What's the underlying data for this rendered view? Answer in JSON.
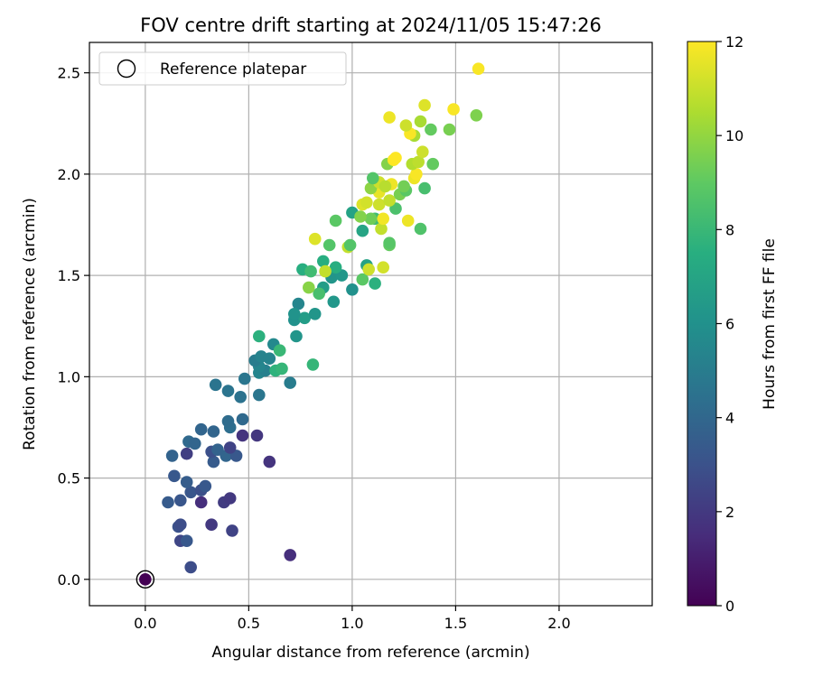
{
  "chart_data": {
    "type": "scatter",
    "title": "FOV centre drift starting at 2024/11/05 15:47:26",
    "xlabel": "Angular distance from reference (arcmin)",
    "ylabel": "Rotation from reference (arcmin)",
    "xlim": [
      -0.27,
      2.45
    ],
    "ylim": [
      -0.13,
      2.65
    ],
    "xticks": [
      0.0,
      0.5,
      1.0,
      1.5,
      2.0
    ],
    "yticks": [
      0.0,
      0.5,
      1.0,
      1.5,
      2.0,
      2.5
    ],
    "grid": true,
    "legend": {
      "location": "upper-left",
      "entries": [
        "Reference platepar"
      ]
    },
    "colorbar": {
      "label": "Hours from first FF file",
      "range": [
        0,
        12
      ],
      "ticks": [
        0,
        2,
        4,
        6,
        8,
        10,
        12
      ],
      "colormap": "viridis"
    },
    "reference_point": {
      "x": 0.0,
      "y": 0.0,
      "color_value": 0
    },
    "points": [
      [
        0.7,
        0.12,
        1.6
      ],
      [
        0.22,
        0.06,
        2.8
      ],
      [
        0.17,
        0.19,
        2.5
      ],
      [
        0.2,
        0.19,
        3.3
      ],
      [
        0.16,
        0.26,
        3.0
      ],
      [
        0.17,
        0.27,
        2.8
      ],
      [
        0.42,
        0.24,
        2.4
      ],
      [
        0.32,
        0.27,
        2.0
      ],
      [
        0.27,
        0.38,
        1.6
      ],
      [
        0.38,
        0.38,
        2.1
      ],
      [
        0.11,
        0.38,
        3.4
      ],
      [
        0.17,
        0.39,
        3.2
      ],
      [
        0.41,
        0.4,
        2.0
      ],
      [
        0.22,
        0.43,
        3.2
      ],
      [
        0.27,
        0.44,
        2.9
      ],
      [
        0.29,
        0.46,
        3.3
      ],
      [
        0.14,
        0.51,
        3.3
      ],
      [
        0.2,
        0.48,
        3.5
      ],
      [
        0.33,
        0.58,
        3.4
      ],
      [
        0.6,
        0.58,
        1.8
      ],
      [
        0.13,
        0.61,
        3.8
      ],
      [
        0.2,
        0.62,
        2.2
      ],
      [
        0.39,
        0.61,
        3.9
      ],
      [
        0.44,
        0.61,
        3.3
      ],
      [
        0.32,
        0.63,
        2.9
      ],
      [
        0.35,
        0.64,
        3.8
      ],
      [
        0.41,
        0.65,
        2.4
      ],
      [
        0.21,
        0.68,
        4.1
      ],
      [
        0.24,
        0.67,
        3.9
      ],
      [
        0.47,
        0.71,
        1.8
      ],
      [
        0.54,
        0.71,
        1.9
      ],
      [
        0.27,
        0.74,
        3.9
      ],
      [
        0.33,
        0.73,
        3.9
      ],
      [
        0.41,
        0.75,
        4.3
      ],
      [
        0.4,
        0.78,
        4.2
      ],
      [
        0.47,
        0.79,
        4.1
      ],
      [
        0.46,
        0.9,
        4.5
      ],
      [
        0.4,
        0.93,
        4.6
      ],
      [
        0.34,
        0.96,
        4.6
      ],
      [
        0.55,
        0.91,
        4.7
      ],
      [
        0.7,
        0.97,
        5.0
      ],
      [
        0.48,
        0.99,
        4.7
      ],
      [
        0.55,
        1.02,
        5.4
      ],
      [
        0.58,
        1.03,
        5.2
      ],
      [
        0.55,
        1.05,
        5.4
      ],
      [
        0.53,
        1.08,
        5.0
      ],
      [
        0.56,
        1.1,
        5.3
      ],
      [
        0.6,
        1.09,
        5.3
      ],
      [
        0.62,
        1.16,
        5.6
      ],
      [
        0.63,
        1.03,
        7.7
      ],
      [
        0.66,
        1.04,
        7.9
      ],
      [
        0.55,
        1.2,
        7.6
      ],
      [
        0.65,
        1.13,
        8.0
      ],
      [
        0.81,
        1.06,
        7.9
      ],
      [
        0.73,
        1.2,
        6.2
      ],
      [
        0.72,
        1.28,
        6.0
      ],
      [
        0.74,
        1.36,
        5.4
      ],
      [
        0.77,
        1.29,
        6.6
      ],
      [
        0.72,
        1.31,
        6.1
      ],
      [
        0.82,
        1.31,
        6.2
      ],
      [
        0.86,
        1.44,
        6.6
      ],
      [
        0.91,
        1.37,
        6.3
      ],
      [
        0.9,
        1.49,
        6.2
      ],
      [
        1.0,
        1.43,
        6.0
      ],
      [
        0.95,
        1.5,
        6.3
      ],
      [
        0.92,
        1.54,
        7.5
      ],
      [
        0.86,
        1.57,
        7.5
      ],
      [
        0.84,
        1.41,
        8.4
      ],
      [
        0.79,
        1.44,
        9.8
      ],
      [
        0.76,
        1.53,
        7.5
      ],
      [
        0.8,
        1.52,
        8.2
      ],
      [
        0.87,
        1.52,
        10.9
      ],
      [
        1.05,
        1.48,
        8.9
      ],
      [
        1.11,
        1.46,
        7.6
      ],
      [
        1.07,
        1.55,
        6.9
      ],
      [
        1.08,
        1.53,
        11.1
      ],
      [
        1.15,
        1.54,
        11.2
      ],
      [
        0.89,
        1.65,
        8.7
      ],
      [
        0.98,
        1.64,
        10.9
      ],
      [
        0.99,
        1.65,
        8.7
      ],
      [
        0.82,
        1.68,
        11.4
      ],
      [
        1.05,
        1.72,
        7.0
      ],
      [
        1.11,
        1.78,
        8.2
      ],
      [
        1.09,
        1.78,
        9.3
      ],
      [
        1.14,
        1.73,
        10.9
      ],
      [
        1.15,
        1.78,
        11.8
      ],
      [
        1.18,
        1.65,
        9.1
      ],
      [
        1.18,
        1.66,
        8.8
      ],
      [
        0.92,
        1.77,
        8.9
      ],
      [
        1.0,
        1.81,
        6.9
      ],
      [
        1.04,
        1.79,
        9.7
      ],
      [
        1.05,
        1.85,
        11.4
      ],
      [
        1.07,
        1.86,
        11.2
      ],
      [
        1.13,
        1.91,
        11.6
      ],
      [
        1.13,
        1.85,
        11.1
      ],
      [
        1.21,
        1.83,
        8.5
      ],
      [
        1.19,
        1.95,
        11.7
      ],
      [
        1.27,
        1.77,
        11.7
      ],
      [
        1.33,
        1.73,
        8.6
      ],
      [
        1.18,
        1.87,
        10.9
      ],
      [
        1.09,
        1.93,
        9.9
      ],
      [
        1.13,
        1.96,
        11.1
      ],
      [
        1.16,
        1.94,
        10.7
      ],
      [
        1.23,
        1.9,
        9.5
      ],
      [
        1.26,
        1.92,
        8.9
      ],
      [
        1.25,
        1.94,
        9.4
      ],
      [
        1.3,
        1.98,
        11.7
      ],
      [
        1.31,
        2.0,
        11.9
      ],
      [
        1.35,
        1.93,
        8.4
      ],
      [
        1.1,
        1.98,
        8.7
      ],
      [
        1.17,
        2.05,
        9.7
      ],
      [
        1.2,
        2.07,
        12.0
      ],
      [
        1.21,
        2.08,
        12.0
      ],
      [
        1.29,
        2.05,
        10.6
      ],
      [
        1.32,
        2.06,
        10.8
      ],
      [
        1.39,
        2.05,
        9.1
      ],
      [
        1.34,
        2.11,
        11.1
      ],
      [
        1.3,
        2.19,
        10.4
      ],
      [
        1.28,
        2.2,
        11.9
      ],
      [
        1.33,
        2.26,
        10.4
      ],
      [
        1.26,
        2.24,
        11.1
      ],
      [
        1.38,
        2.22,
        9.1
      ],
      [
        1.47,
        2.22,
        9.5
      ],
      [
        1.18,
        2.28,
        11.7
      ],
      [
        1.35,
        2.34,
        11.4
      ],
      [
        1.49,
        2.32,
        11.9
      ],
      [
        1.6,
        2.29,
        9.6
      ],
      [
        1.61,
        2.52,
        11.9
      ]
    ]
  }
}
